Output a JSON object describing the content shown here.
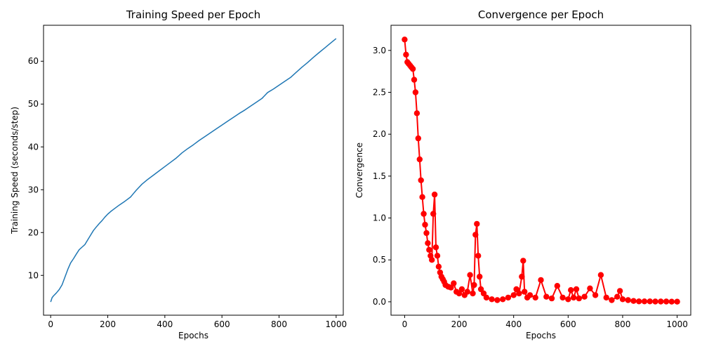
{
  "chart_data": [
    {
      "type": "line",
      "title": "Training Speed per Epoch",
      "xlabel": "Epochs",
      "ylabel": "Training Speed (seconds/step)",
      "xlim": [
        -25,
        1025
      ],
      "ylim": [
        0.7,
        68.4
      ],
      "xticks": [
        0,
        200,
        400,
        600,
        800,
        1000
      ],
      "yticks": [
        10,
        20,
        30,
        40,
        50,
        60
      ],
      "grid": false,
      "color": "#1f77b4",
      "series": [
        {
          "x": [
            0,
            5,
            10,
            20,
            30,
            40,
            50,
            60,
            70,
            80,
            90,
            100,
            110,
            120,
            130,
            140,
            150,
            160,
            170,
            180,
            190,
            200,
            210,
            220,
            240,
            260,
            280,
            290,
            300,
            310,
            320,
            340,
            360,
            380,
            400,
            420,
            440,
            460,
            480,
            500,
            520,
            540,
            560,
            580,
            600,
            620,
            640,
            660,
            680,
            700,
            720,
            740,
            750,
            760,
            780,
            800,
            820,
            840,
            860,
            880,
            900,
            920,
            940,
            960,
            980,
            1000
          ],
          "values": [
            3.8,
            4.8,
            5.2,
            5.9,
            6.7,
            7.8,
            9.6,
            11.4,
            12.9,
            13.9,
            15.0,
            16.0,
            16.6,
            17.2,
            18.3,
            19.4,
            20.5,
            21.3,
            22.1,
            22.8,
            23.6,
            24.3,
            24.9,
            25.4,
            26.4,
            27.3,
            28.3,
            29.1,
            29.9,
            30.6,
            31.3,
            32.4,
            33.4,
            34.4,
            35.4,
            36.4,
            37.4,
            38.6,
            39.6,
            40.5,
            41.5,
            42.4,
            43.3,
            44.2,
            45.1,
            46.0,
            46.9,
            47.8,
            48.6,
            49.5,
            50.4,
            51.3,
            52.0,
            52.7,
            53.5,
            54.4,
            55.3,
            56.2,
            57.4,
            58.6,
            59.7,
            60.9,
            62.0,
            63.1,
            64.2,
            65.3
          ]
        }
      ]
    },
    {
      "type": "line",
      "title": "Convergence per Epoch",
      "xlabel": "Epochs",
      "ylabel": "Convergence",
      "xlim": [
        -50,
        1050
      ],
      "ylim": [
        -0.16,
        3.3
      ],
      "xticks": [
        0,
        200,
        400,
        600,
        800,
        1000
      ],
      "yticks": [
        "0.0",
        "0.5",
        "1.0",
        "1.5",
        "2.0",
        "2.5",
        "3.0"
      ],
      "grid": false,
      "color": "#ff0000",
      "marker": "circle",
      "series": [
        {
          "x": [
            0,
            5,
            10,
            15,
            20,
            25,
            30,
            35,
            40,
            45,
            50,
            55,
            60,
            65,
            70,
            75,
            80,
            85,
            90,
            95,
            100,
            105,
            110,
            115,
            120,
            125,
            130,
            135,
            140,
            145,
            150,
            160,
            170,
            180,
            190,
            200,
            210,
            220,
            230,
            240,
            250,
            255,
            260,
            265,
            270,
            275,
            280,
            290,
            300,
            320,
            340,
            360,
            380,
            400,
            410,
            420,
            430,
            435,
            440,
            450,
            460,
            480,
            500,
            520,
            540,
            560,
            580,
            600,
            610,
            620,
            630,
            640,
            660,
            680,
            700,
            720,
            740,
            760,
            780,
            790,
            800,
            820,
            840,
            860,
            880,
            900,
            920,
            940,
            960,
            980,
            1000
          ],
          "values": [
            3.13,
            2.95,
            2.86,
            2.84,
            2.82,
            2.8,
            2.78,
            2.65,
            2.5,
            2.25,
            1.95,
            1.7,
            1.45,
            1.25,
            1.05,
            0.92,
            0.82,
            0.7,
            0.62,
            0.55,
            0.5,
            1.05,
            1.28,
            0.65,
            0.55,
            0.42,
            0.35,
            0.3,
            0.27,
            0.24,
            0.2,
            0.18,
            0.17,
            0.22,
            0.12,
            0.1,
            0.15,
            0.08,
            0.12,
            0.32,
            0.1,
            0.2,
            0.8,
            0.93,
            0.55,
            0.3,
            0.15,
            0.1,
            0.05,
            0.03,
            0.02,
            0.03,
            0.05,
            0.08,
            0.15,
            0.1,
            0.3,
            0.49,
            0.12,
            0.05,
            0.08,
            0.05,
            0.26,
            0.06,
            0.04,
            0.19,
            0.05,
            0.03,
            0.14,
            0.05,
            0.15,
            0.04,
            0.06,
            0.16,
            0.08,
            0.32,
            0.05,
            0.02,
            0.06,
            0.13,
            0.03,
            0.02,
            0.01,
            0.005,
            0.005,
            0.005,
            0.003,
            0.003,
            0.003,
            0.002,
            0.002
          ]
        }
      ]
    }
  ]
}
